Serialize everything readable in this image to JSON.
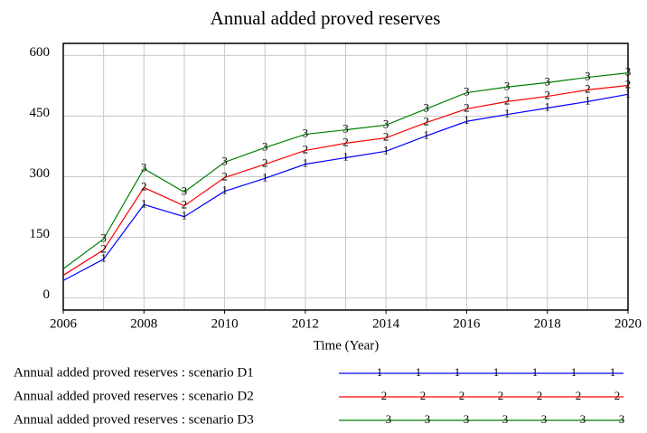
{
  "chart_data": {
    "type": "line",
    "title": "Annual added proved reserves",
    "xlabel": "Time (Year)",
    "x": [
      2006,
      2007,
      2008,
      2009,
      2010,
      2011,
      2012,
      2013,
      2014,
      2015,
      2016,
      2017,
      2018,
      2019,
      2020
    ],
    "series": [
      {
        "name": "Annual added proved reserves : scenario D1",
        "marker": "1",
        "color": "#0000ff",
        "values": [
          43,
          96,
          231,
          201,
          264,
          296,
          331,
          347,
          363,
          401,
          437,
          454,
          470,
          486,
          504
        ]
      },
      {
        "name": "Annual added proved reserves : scenario D2",
        "marker": "2",
        "color": "#ff0000",
        "values": [
          56,
          119,
          273,
          228,
          298,
          331,
          365,
          383,
          396,
          434,
          468,
          486,
          499,
          515,
          526
        ]
      },
      {
        "name": "Annual added proved reserves : scenario D3",
        "marker": "3",
        "color": "#008000",
        "values": [
          72,
          146,
          320,
          262,
          336,
          372,
          405,
          416,
          428,
          468,
          508,
          522,
          533,
          546,
          557
        ]
      }
    ],
    "xlim": [
      2006,
      2020
    ],
    "xticks": [
      2006,
      2008,
      2010,
      2012,
      2014,
      2016,
      2018,
      2020
    ],
    "ylim": [
      -30,
      630
    ],
    "yticks": [
      0,
      150,
      300,
      450,
      600
    ],
    "grid": true
  }
}
